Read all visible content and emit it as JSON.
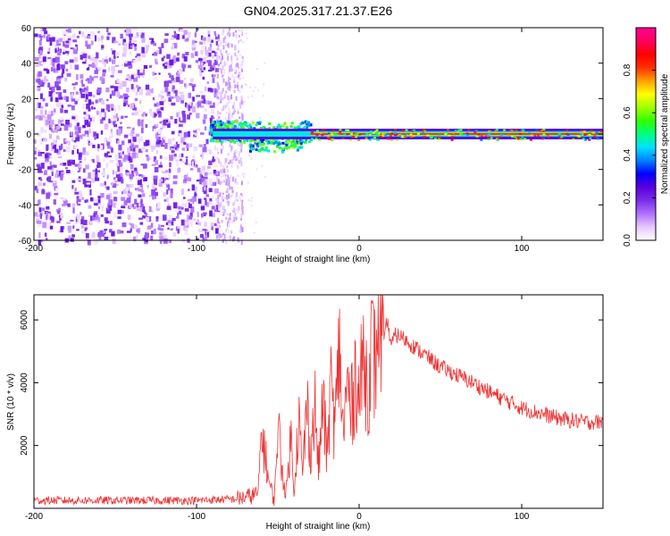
{
  "title": "GN04.2025.317.21.37.E26",
  "chart_data": [
    {
      "type": "heatmap",
      "name": "spectrogram",
      "xlabel": "Height of straight line (km)",
      "ylabel": "Frequency (Hz)",
      "xlim": [
        -200,
        150
      ],
      "ylim": [
        -60,
        60
      ],
      "xticks": [
        -200,
        -100,
        0,
        100
      ],
      "yticks": [
        -60,
        -40,
        -20,
        0,
        20,
        40,
        60
      ],
      "colorbar": {
        "label": "Normalized spectral amplitude",
        "range": [
          0.0,
          1.0
        ],
        "ticks": [
          0.0,
          0.2,
          0.4,
          0.6,
          0.8
        ],
        "colormap": [
          "#ffffff",
          "#e6c8ff",
          "#b070ff",
          "#7a2ee8",
          "#5a00e0",
          "#0000ff",
          "#0080ff",
          "#00e0ff",
          "#00ff80",
          "#30ff00",
          "#a0ff00",
          "#ffff00",
          "#ffa000",
          "#ff3000",
          "#ff0000",
          "#ff0060",
          "#ff0090"
        ]
      },
      "regions": [
        {
          "description": "broadband noise",
          "x_range": [
            -200,
            -88
          ],
          "freq_range": [
            -60,
            60
          ],
          "amplitude": 0.15
        },
        {
          "description": "fading noise",
          "x_range": [
            -88,
            -72
          ],
          "freq_range": [
            -60,
            60
          ],
          "amplitude": 0.05
        },
        {
          "description": "signal onset",
          "x_range": [
            -92,
            -30
          ],
          "freq_center": 2,
          "freq_halfwidth": 6,
          "amplitude": 0.5
        },
        {
          "description": "narrowband carrier",
          "x_range": [
            -30,
            150
          ],
          "freq_center": 0,
          "freq_halfwidth": 3,
          "amplitude": 0.95
        }
      ]
    },
    {
      "type": "line",
      "name": "snr",
      "xlabel": "Height of straight line (km)",
      "ylabel": "SNR (10 * v/v)",
      "xlim": [
        -200,
        150
      ],
      "ylim": [
        0,
        6800
      ],
      "xticks": [
        -200,
        -100,
        0,
        100
      ],
      "yticks": [
        2000,
        4000,
        6000
      ],
      "color": "#ee3333",
      "series": [
        {
          "name": "SNR",
          "x": [
            -200,
            -150,
            -100,
            -75,
            -66,
            -62,
            -60,
            -58,
            -55,
            -52,
            -50,
            -48,
            -45,
            -42,
            -40,
            -37,
            -35,
            -32,
            -30,
            -27,
            -25,
            -22,
            -20,
            -17,
            -15,
            -12,
            -10,
            -7,
            -5,
            -2,
            0,
            3,
            5,
            8,
            10,
            12,
            15,
            17,
            20,
            22,
            25,
            30,
            40,
            50,
            60,
            70,
            80,
            90,
            100,
            110,
            120,
            130,
            140,
            150
          ],
          "y": [
            250,
            250,
            250,
            300,
            400,
            500,
            2500,
            1800,
            700,
            300,
            2800,
            1500,
            400,
            2300,
            600,
            3000,
            1000,
            3300,
            1800,
            3200,
            1200,
            3600,
            1600,
            4000,
            2400,
            5200,
            2400,
            4000,
            3000,
            4500,
            3400,
            5000,
            3800,
            5200,
            4400,
            6800,
            5000,
            6000,
            5200,
            5500,
            5500,
            5300,
            4900,
            4500,
            4250,
            4000,
            3700,
            3450,
            3200,
            3050,
            2900,
            2800,
            2750,
            2750
          ]
        }
      ]
    }
  ]
}
